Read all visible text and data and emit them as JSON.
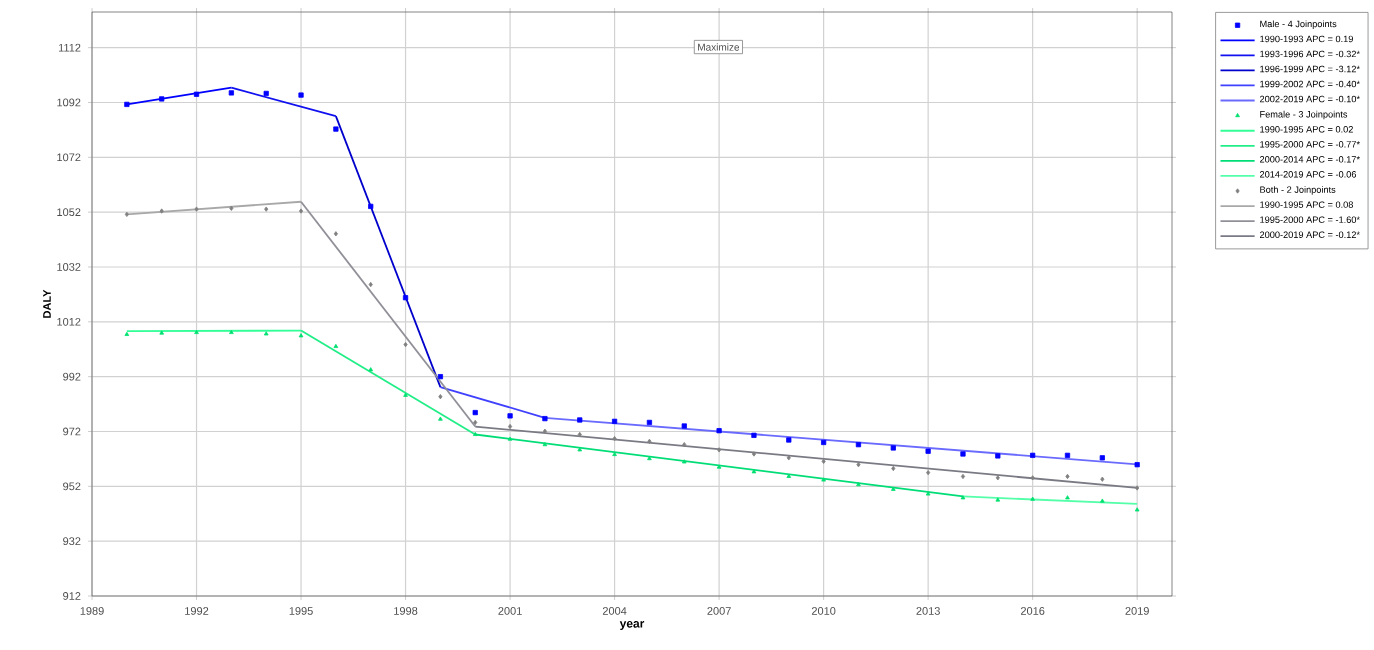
{
  "chart_data": {
    "type": "scatter",
    "xlabel": "year",
    "ylabel": "DALY",
    "xlim": [
      1989,
      2020
    ],
    "ylim": [
      912,
      1125
    ],
    "xticks": [
      1989,
      1992,
      1995,
      1998,
      2001,
      2004,
      2007,
      2010,
      2013,
      2016,
      2019
    ],
    "yticks": [
      912,
      932,
      952,
      972,
      992,
      1012,
      1032,
      1052,
      1072,
      1092,
      1112
    ],
    "grid": true,
    "legend": "right",
    "annotations": [
      "Maximize"
    ],
    "x": [
      1990,
      1991,
      1992,
      1993,
      1994,
      1995,
      1996,
      1997,
      1998,
      1999,
      2000,
      2001,
      2002,
      2003,
      2004,
      2005,
      2006,
      2007,
      2008,
      2009,
      2010,
      2011,
      2012,
      2013,
      2014,
      2015,
      2016,
      2017,
      2018,
      2019
    ],
    "series": [
      {
        "name": "Male - 4 Joinpoints",
        "marker": "square",
        "color": "#0000ff",
        "values": [
          1091.3,
          1093.3,
          1095,
          1095.5,
          1095.3,
          1094.7,
          1082.3,
          1054.1,
          1020.8,
          992,
          978.9,
          977.7,
          976.7,
          976.2,
          975.7,
          975.3,
          974,
          972.3,
          970.6,
          968.9,
          968,
          967.2,
          966,
          964.8,
          963.8,
          963.1,
          963.3,
          963.3,
          962.4,
          959.9
        ]
      },
      {
        "name": "1990-1993 APC =  0.19",
        "type": "line",
        "color": "#0000ff",
        "x": [
          1990,
          1993
        ],
        "values": [
          1091.3,
          1097.4
        ]
      },
      {
        "name": "1993-1996 APC = -0.32*",
        "type": "line",
        "color": "#1010f0",
        "x": [
          1993,
          1996
        ],
        "values": [
          1097.4,
          1087
        ]
      },
      {
        "name": "1996-1999 APC = -3.12*",
        "type": "line",
        "color": "#0000cc",
        "x": [
          1996,
          1999
        ],
        "values": [
          1087,
          988.2
        ]
      },
      {
        "name": "1999-2002 APC = -0.40*",
        "type": "line",
        "color": "#4040ff",
        "x": [
          1999,
          2002
        ],
        "values": [
          988.2,
          977
        ]
      },
      {
        "name": "2002-2019 APC = -0.10*",
        "type": "line",
        "color": "#6a6aff",
        "x": [
          2002,
          2019
        ],
        "values": [
          977,
          960
        ]
      },
      {
        "name": "Female - 3 Joinpoints",
        "marker": "triangle",
        "color": "#00e070",
        "values": [
          1007.4,
          1007.9,
          1008.1,
          1008.1,
          1007.6,
          1006.9,
          1003,
          994.5,
          985.2,
          976.5,
          970.9,
          969.2,
          967.2,
          965.3,
          963.6,
          962.1,
          960.9,
          959,
          957.3,
          955.6,
          954.3,
          952.6,
          950.9,
          949.2,
          947.8,
          947,
          947.3,
          947.8,
          946.6,
          943.4
        ]
      },
      {
        "name": "1990-1995 APC =  0.02",
        "type": "line",
        "color": "#33ff99",
        "x": [
          1990,
          1995
        ],
        "values": [
          1008.6,
          1008.8
        ]
      },
      {
        "name": "1995-2000 APC = -0.77*",
        "type": "line",
        "color": "#22ee88",
        "x": [
          1995,
          2000
        ],
        "values": [
          1008.8,
          970.9
        ]
      },
      {
        "name": "2000-2014 APC = -0.17*",
        "type": "line",
        "color": "#00dd77",
        "x": [
          2000,
          2014
        ],
        "values": [
          970.9,
          948.3
        ]
      },
      {
        "name": "2014-2019 APC = -0.06",
        "type": "line",
        "color": "#55ffaa",
        "x": [
          2014,
          2019
        ],
        "values": [
          948.3,
          945.6
        ]
      },
      {
        "name": "Both - 2 Joinpoints",
        "marker": "diamond",
        "color": "#808080",
        "values": [
          1051.2,
          1052.4,
          1053.1,
          1053.4,
          1053.1,
          1052.4,
          1044.1,
          1025.6,
          1003.7,
          984.7,
          975.3,
          973.8,
          972.1,
          970.9,
          969.4,
          968.4,
          967.2,
          965.3,
          963.8,
          962.4,
          961.1,
          959.9,
          958.5,
          957,
          955.6,
          955.1,
          955.1,
          955.6,
          954.6,
          951.4
        ]
      },
      {
        "name": "1990-1995 APC =  0.08",
        "type": "line",
        "color": "#a8a8a8",
        "x": [
          1990,
          1995
        ],
        "values": [
          1051.2,
          1055.8
        ]
      },
      {
        "name": "1995-2000 APC = -1.60*",
        "type": "line",
        "color": "#909098",
        "x": [
          1995,
          2000
        ],
        "values": [
          1055.8,
          973.8
        ]
      },
      {
        "name": "2000-2019 APC = -0.12*",
        "type": "line",
        "color": "#7a7a84",
        "x": [
          2000,
          2019
        ],
        "values": [
          973.8,
          951.4
        ]
      }
    ]
  }
}
